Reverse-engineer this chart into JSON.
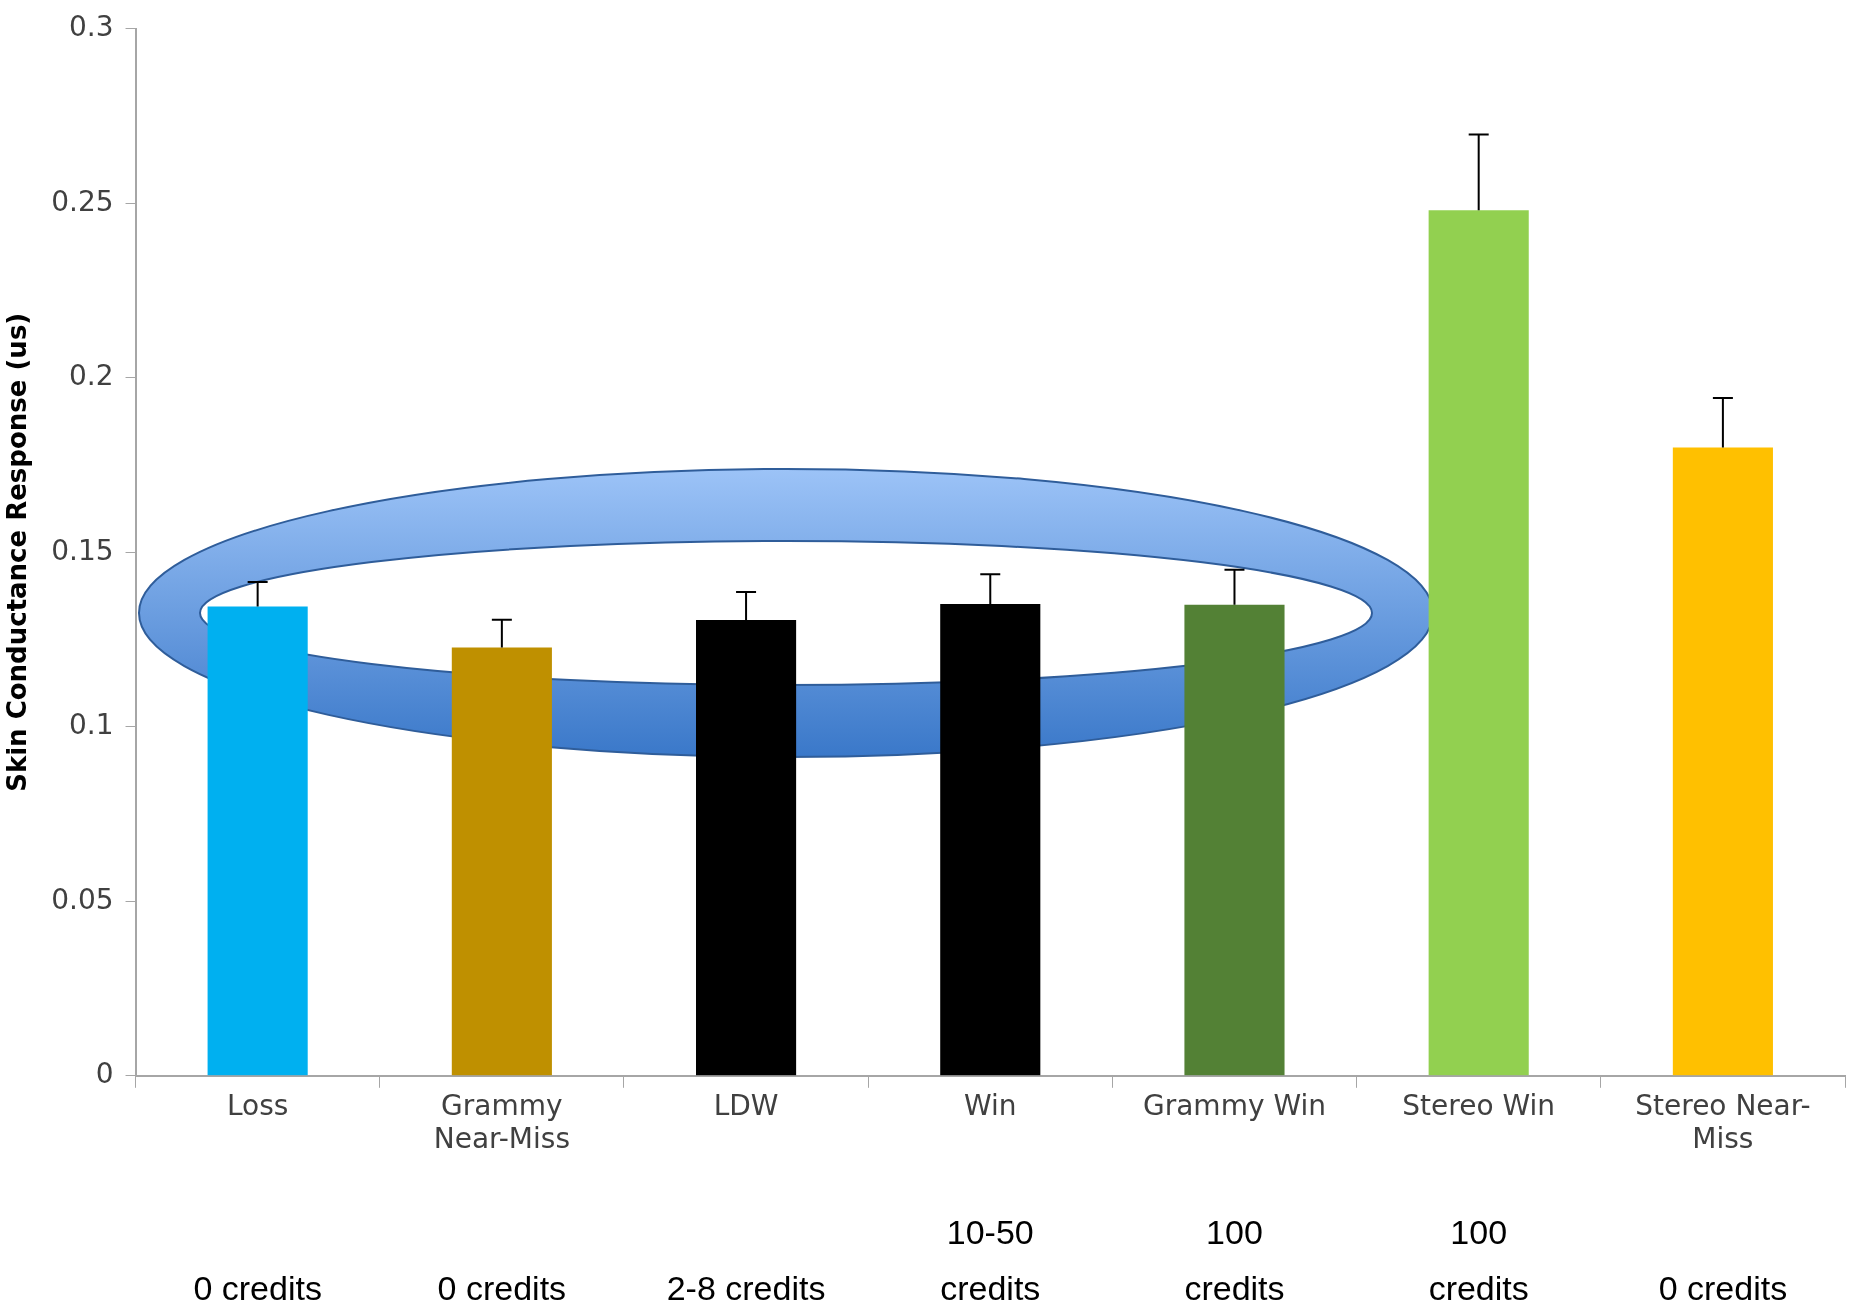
{
  "chart_data": {
    "type": "bar",
    "ylabel": "Skin Conductance Response (us)",
    "categories": [
      "Loss",
      "Grammy Near-Miss",
      "LDW",
      "Win",
      "Grammy Win",
      "Stereo Win",
      "Stereo Near-Miss"
    ],
    "values": [
      0.1345,
      0.1227,
      0.1306,
      0.1352,
      0.135,
      0.248,
      0.18
    ],
    "colors": [
      "#00b0f0",
      "#bf9000",
      "#000000",
      "#000000",
      "#538135",
      "#92d050",
      "#ffc000"
    ],
    "errors": [
      [
        0.1345,
        0.1415
      ],
      [
        0.1227,
        0.1307
      ],
      [
        0.1306,
        0.1386
      ],
      [
        0.1352,
        0.1437
      ],
      [
        0.135,
        0.145
      ],
      [
        0.248,
        0.2697
      ],
      [
        0.18,
        0.1942
      ]
    ],
    "ylim": [
      0,
      0.3
    ],
    "yticks": [
      0,
      0.05,
      0.1,
      0.15,
      0.2,
      0.25,
      0.3
    ],
    "grid": false,
    "legend": false,
    "annotations": [
      "0 credits",
      "0 credits",
      "2-8 credits",
      "10-50 credits",
      "100 credits",
      "100 credits",
      "0 credits"
    ]
  }
}
